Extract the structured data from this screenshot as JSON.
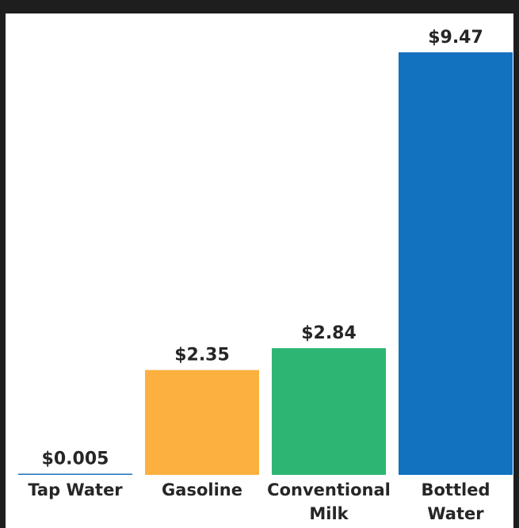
{
  "chart_data": {
    "type": "bar",
    "categories": [
      [
        "Tap Water"
      ],
      [
        "Gasoline"
      ],
      [
        "Conventional",
        "Milk"
      ],
      [
        "Bottled",
        "Water"
      ]
    ],
    "values": [
      0.005,
      2.35,
      2.84,
      9.47
    ],
    "value_labels": [
      "$0.005",
      "$2.35",
      "$2.84",
      "$9.47"
    ],
    "colors": [
      "#1a72bf",
      "#fbb040",
      "#2db673",
      "#1272bf"
    ],
    "title": "",
    "xlabel": "",
    "ylabel": "",
    "ylim": [
      0,
      9.47
    ],
    "grid": false,
    "legend": "none"
  }
}
